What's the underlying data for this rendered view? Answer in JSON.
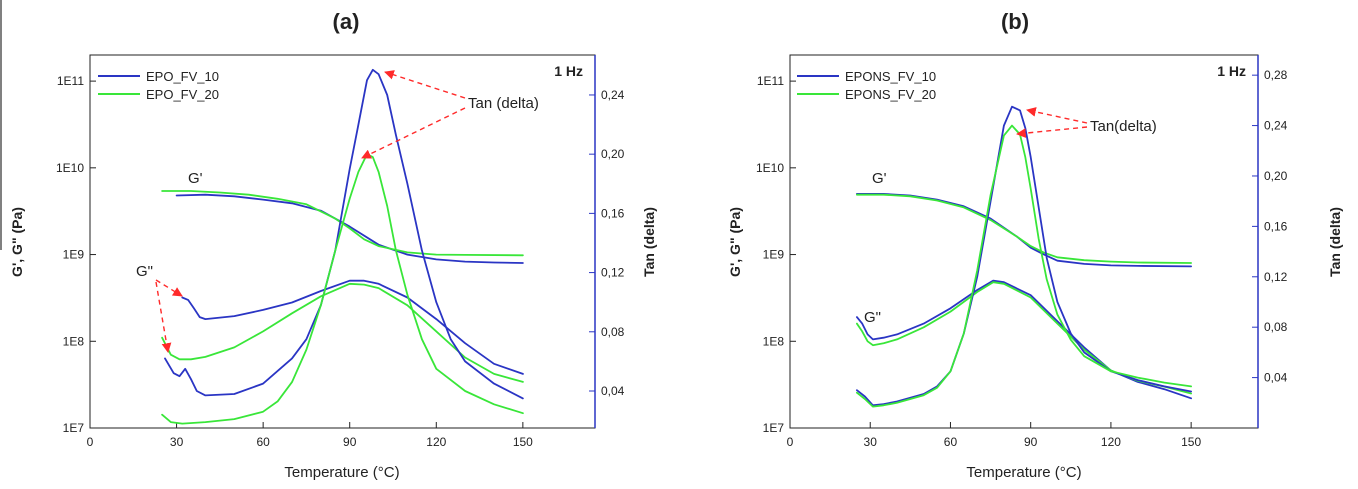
{
  "colors": {
    "blue": "#2a35c4",
    "green": "#39e639",
    "arrow": "#ff2a2a",
    "axis_right": "#2a35c4"
  },
  "chart_data": [
    {
      "type": "line",
      "panel_label": "(a)",
      "xlabel": "Temperature (°C)",
      "ylabel_left": "G', G\" (Pa)",
      "ylabel_right": "Tan (delta)",
      "frequency_label": "1 Hz",
      "xlim": [
        0,
        175
      ],
      "x_ticks": [
        0,
        30,
        60,
        90,
        120,
        150
      ],
      "x_tick_labels": [
        "0",
        "30",
        "60",
        "90",
        "120",
        "150"
      ],
      "ylim_left": [
        10000000.0,
        200000000000.0
      ],
      "yscale_left": "log",
      "y_ticks_left": [
        10000000.0,
        100000000.0,
        1000000000.0,
        10000000000.0,
        100000000000.0
      ],
      "y_tick_labels_left": [
        "1E7",
        "1E8",
        "1E9",
        "1E10",
        "1E11"
      ],
      "ylim_right": [
        0.015,
        0.267
      ],
      "y_ticks_right": [
        0.04,
        0.08,
        0.12,
        0.16,
        0.2,
        0.24
      ],
      "y_tick_labels_right": [
        "0,04",
        "0,08",
        "0,12",
        "0,16",
        "0,20",
        "0,24"
      ],
      "legend": {
        "placement": "top-left",
        "entries": [
          "EPO_FV_10",
          "EPO_FV_20"
        ]
      },
      "annotations": {
        "g_prime": "G'",
        "g_double_prime": "G\"",
        "tan_delta": "Tan (delta)"
      },
      "series": [
        {
          "name": "EPO_FV_10",
          "quantity": "G'",
          "axis": "left",
          "color": "blue",
          "x": [
            30,
            40,
            50,
            60,
            70,
            80,
            90,
            100,
            110,
            120,
            130,
            140,
            150
          ],
          "y": [
            4800000000.0,
            4900000000.0,
            4700000000.0,
            4300000000.0,
            3900000000.0,
            3200000000.0,
            2100000000.0,
            1300000000.0,
            1000000000.0,
            880000000.0,
            830000000.0,
            810000000.0,
            800000000.0
          ]
        },
        {
          "name": "EPO_FV_20",
          "quantity": "G'",
          "axis": "left",
          "color": "green",
          "x": [
            25,
            35,
            45,
            55,
            65,
            75,
            85,
            90,
            95,
            100,
            110,
            120,
            130,
            150
          ],
          "y": [
            5400000000.0,
            5400000000.0,
            5200000000.0,
            4900000000.0,
            4400000000.0,
            3800000000.0,
            2600000000.0,
            2000000000.0,
            1500000000.0,
            1250000000.0,
            1060000000.0,
            1000000000.0,
            990000000.0,
            980000000.0
          ]
        },
        {
          "name": "EPO_FV_10",
          "quantity": "G\"",
          "axis": "left",
          "color": "blue",
          "x": [
            32,
            34,
            36,
            38,
            40,
            50,
            60,
            70,
            80,
            90,
            95,
            100,
            110,
            120,
            130,
            140,
            150
          ],
          "y": [
            320000000.0,
            300000000.0,
            240000000.0,
            190000000.0,
            180000000.0,
            195000000.0,
            230000000.0,
            280000000.0,
            380000000.0,
            500000000.0,
            500000000.0,
            460000000.0,
            320000000.0,
            180000000.0,
            95000000.0,
            55000000.0,
            42000000.0
          ]
        },
        {
          "name": "EPO_FV_20",
          "quantity": "G\"",
          "axis": "left",
          "color": "green",
          "x": [
            25,
            28,
            31,
            35,
            40,
            50,
            60,
            70,
            80,
            90,
            95,
            100,
            110,
            120,
            130,
            140,
            150
          ],
          "y": [
            110000000.0,
            70000000.0,
            62000000.0,
            62000000.0,
            66000000.0,
            85000000.0,
            130000000.0,
            210000000.0,
            330000000.0,
            460000000.0,
            450000000.0,
            410000000.0,
            260000000.0,
            130000000.0,
            65000000.0,
            42000000.0,
            34000000.0
          ]
        },
        {
          "name": "EPO_FV_10",
          "quantity": "Tan (delta)",
          "axis": "right",
          "color": "blue",
          "x": [
            26,
            29,
            31,
            33,
            35,
            37,
            40,
            50,
            60,
            70,
            75,
            80,
            85,
            90,
            93,
            96,
            98,
            100,
            103,
            106,
            110,
            115,
            120,
            125,
            130,
            140,
            150
          ],
          "y": [
            0.062,
            0.052,
            0.05,
            0.055,
            0.048,
            0.04,
            0.037,
            0.038,
            0.045,
            0.062,
            0.075,
            0.098,
            0.135,
            0.19,
            0.22,
            0.25,
            0.257,
            0.254,
            0.24,
            0.213,
            0.18,
            0.135,
            0.1,
            0.075,
            0.06,
            0.045,
            0.035
          ]
        },
        {
          "name": "EPO_FV_20",
          "quantity": "Tan (delta)",
          "axis": "right",
          "color": "green",
          "x": [
            25,
            28,
            32,
            40,
            50,
            60,
            65,
            70,
            75,
            80,
            85,
            90,
            93,
            96,
            98,
            100,
            103,
            106,
            110,
            115,
            120,
            130,
            140,
            150
          ],
          "y": [
            0.024,
            0.019,
            0.018,
            0.019,
            0.021,
            0.026,
            0.033,
            0.046,
            0.068,
            0.098,
            0.135,
            0.17,
            0.188,
            0.2,
            0.198,
            0.188,
            0.165,
            0.135,
            0.105,
            0.075,
            0.055,
            0.04,
            0.031,
            0.025
          ]
        }
      ]
    },
    {
      "type": "line",
      "panel_label": "(b)",
      "xlabel": "Temperature (°C)",
      "ylabel_left": "G', G\" (Pa)",
      "ylabel_right": "Tan (delta)",
      "frequency_label": "1 Hz",
      "xlim": [
        0,
        175
      ],
      "x_ticks": [
        0,
        30,
        60,
        90,
        120,
        150
      ],
      "x_tick_labels": [
        "0",
        "30",
        "60",
        "90",
        "120",
        "150"
      ],
      "ylim_left": [
        10000000.0,
        200000000000.0
      ],
      "yscale_left": "log",
      "y_ticks_left": [
        10000000.0,
        100000000.0,
        1000000000.0,
        10000000000.0,
        100000000000.0
      ],
      "y_tick_labels_left": [
        "1E7",
        "1E8",
        "1E9",
        "1E10",
        "1E11"
      ],
      "ylim_right": [
        0.0,
        0.296
      ],
      "y_ticks_right": [
        0.04,
        0.08,
        0.12,
        0.16,
        0.2,
        0.24,
        0.28
      ],
      "y_tick_labels_right": [
        "0,04",
        "0,08",
        "0,12",
        "0,16",
        "0,20",
        "0,24",
        "0,28"
      ],
      "legend": {
        "placement": "top-left",
        "entries": [
          "EPONS_FV_10",
          "EPONS_FV_20"
        ]
      },
      "annotations": {
        "g_prime": "G'",
        "g_double_prime": "G\"",
        "tan_delta": "Tan(delta)"
      },
      "series": [
        {
          "name": "EPONS_FV_10",
          "quantity": "G'",
          "axis": "left",
          "color": "blue",
          "x": [
            25,
            35,
            45,
            55,
            65,
            75,
            85,
            90,
            95,
            100,
            110,
            120,
            130,
            150
          ],
          "y": [
            5000000000.0,
            5000000000.0,
            4800000000.0,
            4300000000.0,
            3600000000.0,
            2600000000.0,
            1600000000.0,
            1200000000.0,
            1000000000.0,
            850000000.0,
            780000000.0,
            750000000.0,
            740000000.0,
            730000000.0
          ]
        },
        {
          "name": "EPONS_FV_20",
          "quantity": "G'",
          "axis": "left",
          "color": "green",
          "x": [
            25,
            35,
            45,
            55,
            65,
            75,
            85,
            90,
            95,
            100,
            110,
            120,
            130,
            150
          ],
          "y": [
            4900000000.0,
            4900000000.0,
            4700000000.0,
            4200000000.0,
            3500000000.0,
            2500000000.0,
            1600000000.0,
            1250000000.0,
            1050000000.0,
            930000000.0,
            860000000.0,
            830000000.0,
            810000000.0,
            800000000.0
          ]
        },
        {
          "name": "EPONS_FV_10",
          "quantity": "G\"",
          "axis": "left",
          "color": "blue",
          "x": [
            25,
            27,
            29,
            31,
            35,
            40,
            50,
            60,
            70,
            76,
            80,
            90,
            100,
            110,
            120,
            130,
            140,
            150
          ],
          "y": [
            190000000.0,
            160000000.0,
            120000000.0,
            105000000.0,
            110000000.0,
            120000000.0,
            160000000.0,
            240000000.0,
            390000000.0,
            500000000.0,
            480000000.0,
            340000000.0,
            170000000.0,
            85000000.0,
            46000000.0,
            34000000.0,
            28000000.0,
            22000000.0
          ]
        },
        {
          "name": "EPONS_FV_20",
          "quantity": "G\"",
          "axis": "left",
          "color": "green",
          "x": [
            25,
            27,
            29,
            31,
            35,
            40,
            50,
            60,
            70,
            76,
            80,
            90,
            100,
            110,
            120,
            130,
            140,
            150
          ],
          "y": [
            160000000.0,
            130000000.0,
            100000000.0,
            90000000.0,
            95000000.0,
            105000000.0,
            145000000.0,
            220000000.0,
            370000000.0,
            480000000.0,
            460000000.0,
            320000000.0,
            160000000.0,
            80000000.0,
            46000000.0,
            35000000.0,
            30000000.0,
            25000000.0
          ]
        },
        {
          "name": "EPONS_FV_10",
          "quantity": "Tan (delta)",
          "axis": "right",
          "color": "blue",
          "x": [
            25,
            28,
            31,
            35,
            40,
            50,
            55,
            60,
            65,
            70,
            75,
            80,
            83,
            86,
            88,
            90,
            93,
            96,
            100,
            105,
            110,
            120,
            130,
            140,
            150
          ],
          "y": [
            0.03,
            0.025,
            0.018,
            0.019,
            0.021,
            0.027,
            0.033,
            0.045,
            0.075,
            0.12,
            0.18,
            0.24,
            0.255,
            0.252,
            0.238,
            0.215,
            0.175,
            0.135,
            0.1,
            0.075,
            0.06,
            0.045,
            0.038,
            0.033,
            0.029
          ]
        },
        {
          "name": "EPONS_FV_20",
          "quantity": "Tan (delta)",
          "axis": "right",
          "color": "green",
          "x": [
            25,
            28,
            31,
            35,
            40,
            50,
            55,
            60,
            65,
            70,
            75,
            80,
            83,
            86,
            88,
            90,
            93,
            96,
            100,
            105,
            110,
            120,
            130,
            140,
            150
          ],
          "y": [
            0.028,
            0.023,
            0.017,
            0.018,
            0.02,
            0.026,
            0.032,
            0.045,
            0.075,
            0.125,
            0.185,
            0.232,
            0.24,
            0.233,
            0.215,
            0.19,
            0.15,
            0.118,
            0.09,
            0.07,
            0.057,
            0.045,
            0.04,
            0.036,
            0.033
          ]
        }
      ]
    }
  ]
}
